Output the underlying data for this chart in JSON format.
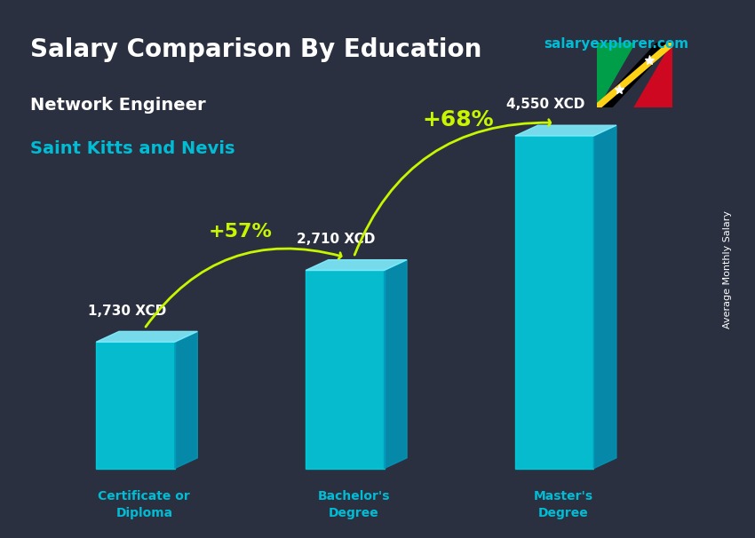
{
  "title": "Salary Comparison By Education",
  "subtitle1": "Network Engineer",
  "subtitle2": "Saint Kitts and Nevis",
  "watermark": "salaryexplorer.com",
  "ylabel": "Average Monthly Salary",
  "categories": [
    "Certificate or\nDiploma",
    "Bachelor's\nDegree",
    "Master's\nDegree"
  ],
  "values": [
    1730,
    2710,
    4550
  ],
  "labels": [
    "1,730 XCD",
    "2,710 XCD",
    "4,550 XCD"
  ],
  "pct_labels": [
    "+57%",
    "+68%"
  ],
  "bar_color_top": "#00e5ff",
  "bar_color_mid": "#0097a7",
  "bar_color_bottom": "#006064",
  "bg_color": "#1a1a2e",
  "title_color": "#ffffff",
  "subtitle1_color": "#ffffff",
  "subtitle2_color": "#00bcd4",
  "label_color": "#ffffff",
  "pct_color": "#c8f500",
  "arrow_color": "#c8f500",
  "watermark_color": "#00bcd4",
  "cat_color": "#00bcd4",
  "ylabel_color": "#ffffff",
  "figsize": [
    8.5,
    6.06
  ],
  "dpi": 100
}
